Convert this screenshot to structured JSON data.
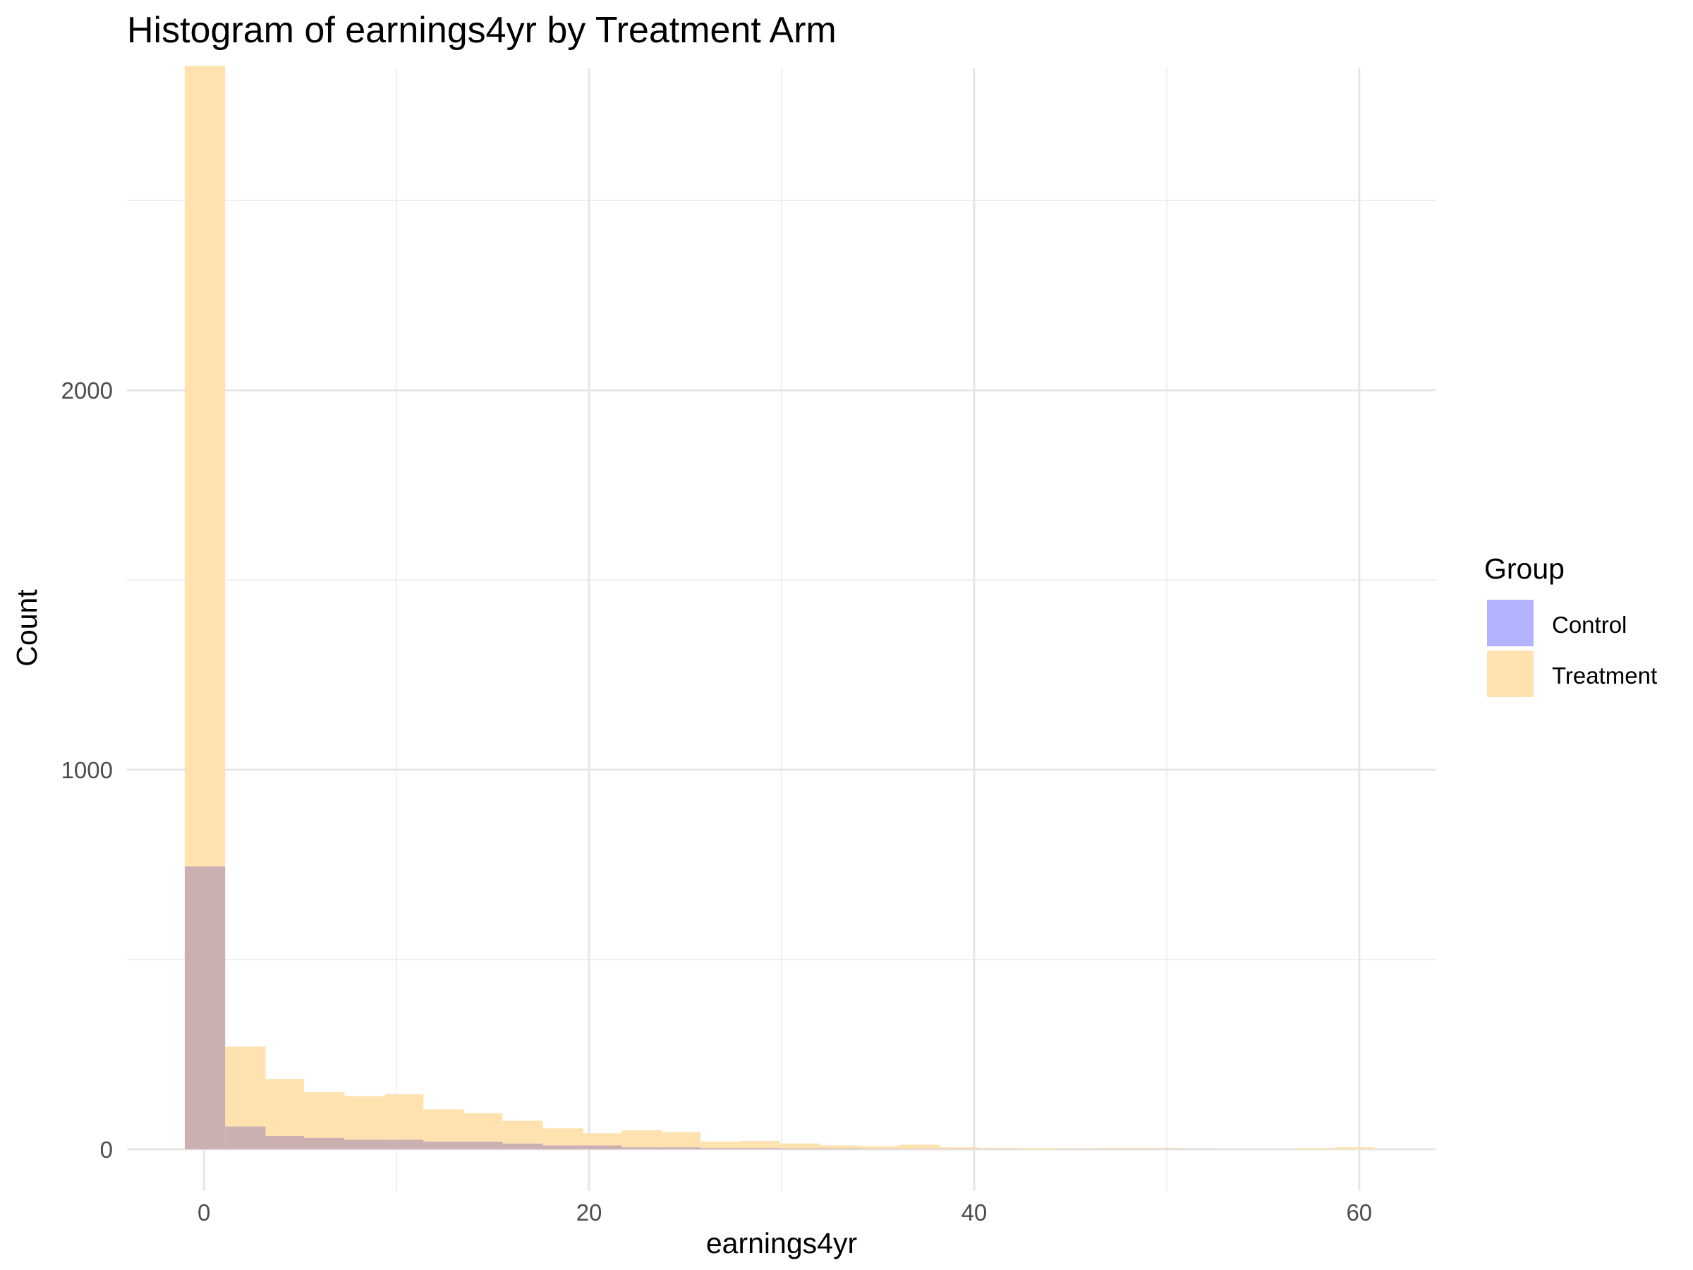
{
  "chart_data": {
    "type": "histogram",
    "title": "Histogram of earnings4yr by Treatment Arm",
    "xlabel": "earnings4yr",
    "ylabel": "Count",
    "xlim": [
      -4,
      64
    ],
    "ylim": [
      -110,
      2850
    ],
    "x_ticks": [
      0,
      20,
      40,
      60
    ],
    "x_tick_labels": [
      "0",
      "20",
      "40",
      "60"
    ],
    "y_ticks": [
      0,
      1000,
      2000
    ],
    "y_tick_labels": [
      "0",
      "1000",
      "2000"
    ],
    "grid": true,
    "overlap_color": "#cbb0b2",
    "legend": {
      "title": "Group",
      "position": "right",
      "entries": [
        {
          "label": "Control",
          "color": "#b3b3ff"
        },
        {
          "label": "Treatment",
          "color": "#ffe2b0"
        }
      ]
    },
    "bins": [
      -1.0,
      1.1,
      3.2,
      5.2,
      7.3,
      9.4,
      11.4,
      13.5,
      15.5,
      17.6,
      19.7,
      21.7,
      23.8,
      25.8,
      27.9,
      29.9,
      32.0,
      34.1,
      36.1,
      38.2,
      40.2,
      42.3,
      44.4,
      46.4,
      48.5,
      50.6,
      52.6,
      54.7,
      56.7,
      58.8,
      60.8
    ],
    "series": [
      {
        "name": "Control",
        "color": "#b3b3ff",
        "values": [
          745,
          60,
          35,
          30,
          25,
          25,
          20,
          20,
          15,
          10,
          10,
          5,
          5,
          3,
          3,
          2,
          2,
          1,
          1,
          1,
          1,
          0,
          1,
          1,
          1,
          1,
          0,
          0,
          0,
          0
        ]
      },
      {
        "name": "Treatment",
        "color": "#ffe2b0",
        "values": [
          2855,
          270,
          185,
          150,
          140,
          145,
          105,
          95,
          75,
          55,
          42,
          50,
          45,
          20,
          22,
          15,
          10,
          8,
          12,
          5,
          3,
          3,
          2,
          3,
          3,
          1,
          0,
          0,
          3,
          5
        ]
      }
    ]
  }
}
